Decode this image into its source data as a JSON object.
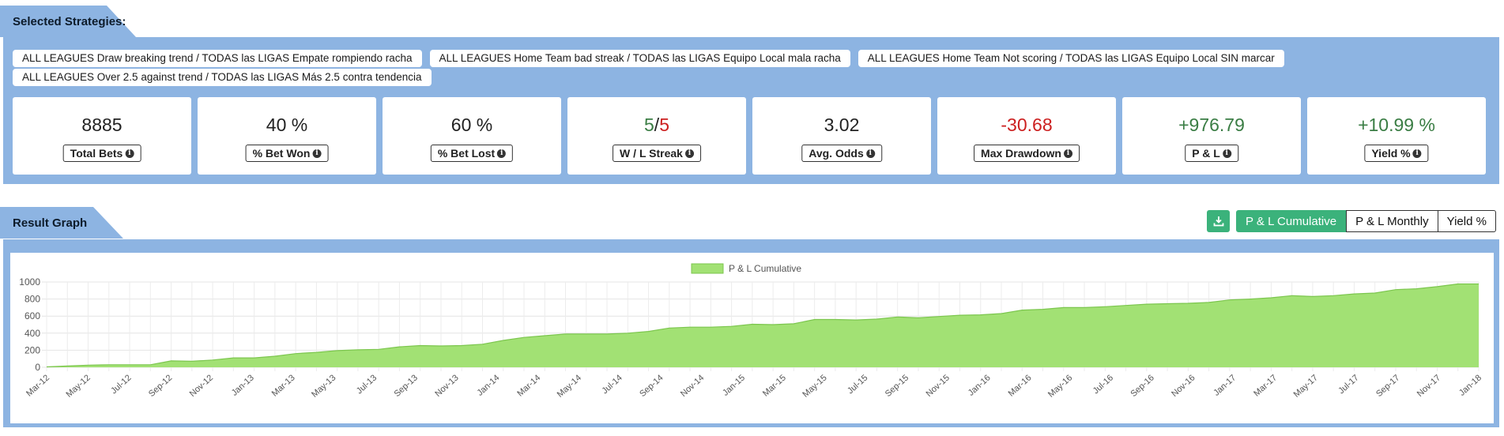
{
  "selected_section": {
    "title": "Selected Strategies:"
  },
  "strategies": [
    "ALL LEAGUES Draw breaking trend / TODAS las LIGAS Empate rompiendo racha",
    "ALL LEAGUES Home Team bad streak / TODAS las LIGAS Equipo Local mala racha",
    "ALL LEAGUES Home Team Not scoring / TODAS las LIGAS Equipo Local SIN marcar",
    "ALL LEAGUES Over 2.5 against trend / TODAS las LIGAS Más 2.5 contra tendencia"
  ],
  "stats": {
    "total_bets": {
      "value": "8885",
      "label": "Total Bets"
    },
    "bet_won": {
      "value": "40 %",
      "label": "% Bet Won"
    },
    "bet_lost": {
      "value": "60 %",
      "label": "% Bet Lost"
    },
    "streak": {
      "win": "5",
      "sep": "/",
      "loss": "5",
      "label": "W / L Streak"
    },
    "avg_odds": {
      "value": "3.02",
      "label": "Avg. Odds"
    },
    "max_drawdown": {
      "value": "-30.68",
      "label": "Max Drawdown"
    },
    "pnl": {
      "value": "+976.79",
      "label": "P & L"
    },
    "yield": {
      "value": "+10.99 %",
      "label": "Yield %"
    }
  },
  "colors": {
    "positive": "#3a7d44",
    "negative": "#cc1f1f",
    "accent": "#3bb27b",
    "panel": "#8db4e2",
    "series_fill": "#a2e174",
    "series_line": "#7cc64e"
  },
  "result_section": {
    "title": "Result Graph"
  },
  "toolbar": {
    "download_icon": "download-icon",
    "buttons": [
      "P & L Cumulative",
      "P & L Monthly",
      "Yield %"
    ],
    "active": 0
  },
  "chart_data": {
    "type": "area",
    "legend": "P & L Cumulative",
    "legend_position": "top-center",
    "grid": true,
    "ylim": [
      0,
      1000
    ],
    "yticks": [
      0,
      200,
      400,
      600,
      800,
      1000
    ],
    "xtick_labels": [
      "Mar-12",
      "May-12",
      "Jul-12",
      "Sep-12",
      "Nov-12",
      "Jan-13",
      "Mar-13",
      "May-13",
      "Jul-13",
      "Sep-13",
      "Nov-13",
      "Jan-14",
      "Mar-14",
      "May-14",
      "Jul-14",
      "Sep-14",
      "Nov-14",
      "Jan-15",
      "Mar-15",
      "May-15",
      "Jul-15",
      "Sep-15",
      "Nov-15",
      "Jan-16",
      "Mar-16",
      "May-16",
      "Jul-16",
      "Sep-16",
      "Nov-16",
      "Jan-17",
      "Mar-17",
      "May-17",
      "Jul-17",
      "Sep-17",
      "Nov-17",
      "Jan-18"
    ],
    "values": [
      5,
      15,
      25,
      30,
      30,
      30,
      75,
      70,
      85,
      110,
      110,
      130,
      160,
      175,
      195,
      205,
      210,
      240,
      255,
      250,
      255,
      270,
      315,
      350,
      370,
      390,
      390,
      390,
      400,
      420,
      460,
      470,
      470,
      480,
      505,
      500,
      510,
      560,
      560,
      555,
      565,
      590,
      580,
      595,
      610,
      615,
      630,
      670,
      680,
      700,
      700,
      710,
      725,
      740,
      745,
      750,
      760,
      790,
      800,
      815,
      840,
      830,
      840,
      860,
      870,
      910,
      920,
      945,
      977,
      977
    ]
  }
}
